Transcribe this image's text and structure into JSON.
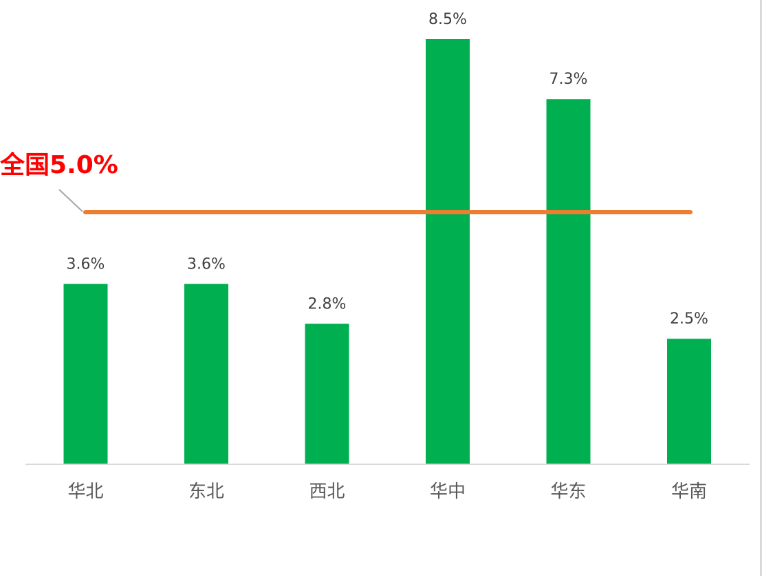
{
  "chart_data": {
    "type": "bar",
    "categories": [
      "华北",
      "东北",
      "西北",
      "华中",
      "华东",
      "华南"
    ],
    "values": [
      3.6,
      3.6,
      2.8,
      8.5,
      7.3,
      2.5
    ],
    "data_labels": [
      "3.6%",
      "3.6%",
      "2.8%",
      "8.5%",
      "7.3%",
      "2.5%"
    ],
    "value_suffix": "%",
    "ylim": [
      0,
      8.5
    ],
    "grid": false,
    "legend": "none",
    "reference_line": {
      "label": "全国5.0%",
      "value": 5.0
    },
    "colors": {
      "bar": "#00b050",
      "reference_line": "#ed7d31",
      "reference_label": "#ff0000",
      "axis": "#d9d9d9",
      "leader": "#a6a6a6",
      "tick_label": "#595959",
      "data_label": "#404040"
    }
  }
}
